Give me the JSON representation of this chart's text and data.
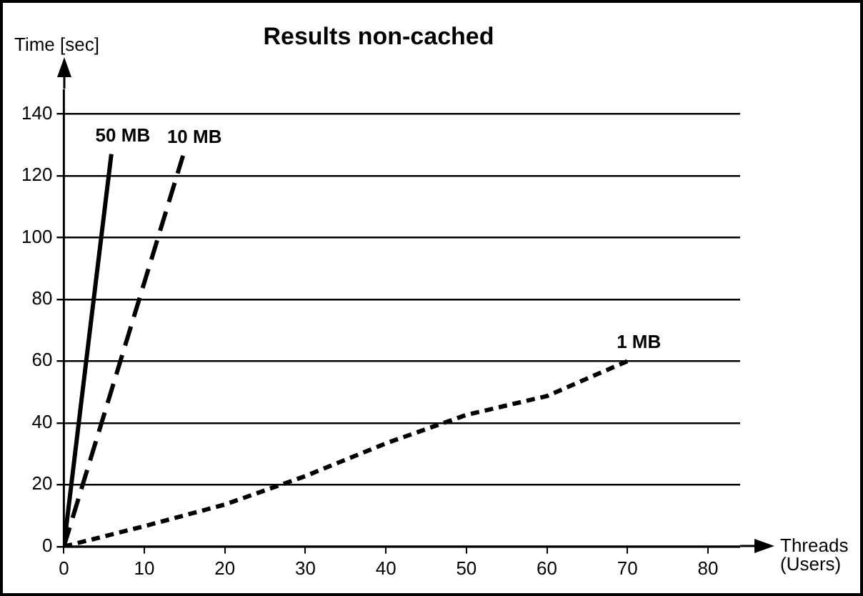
{
  "chart_data": {
    "type": "line",
    "title": "Results non-cached",
    "xlabel": "Threads (Users)",
    "ylabel": "Time [sec]",
    "xlim": [
      0,
      84
    ],
    "ylim": [
      0,
      148
    ],
    "xticks": [
      0,
      10,
      20,
      30,
      40,
      50,
      60,
      70,
      80
    ],
    "yticks": [
      0,
      20,
      40,
      60,
      80,
      100,
      120,
      140
    ],
    "grid": "y",
    "legend": false,
    "marker": "none",
    "series": [
      {
        "name": "50 MB",
        "color": "#000000",
        "line_style": "solid",
        "x": [
          0,
          3.1,
          5.9
        ],
        "values": [
          0,
          67,
          127
        ]
      },
      {
        "name": "10 MB",
        "color": "#000000",
        "line_style": "dashed",
        "x": [
          0,
          14.8
        ],
        "values": [
          0,
          126.5
        ]
      },
      {
        "name": "1 MB",
        "color": "#000000",
        "line_style": "dotted",
        "x": [
          0,
          10,
          20,
          30,
          40,
          50,
          60,
          70
        ],
        "values": [
          0,
          6.6,
          13.6,
          22.8,
          33.4,
          42.6,
          48.7,
          60
        ]
      }
    ]
  }
}
